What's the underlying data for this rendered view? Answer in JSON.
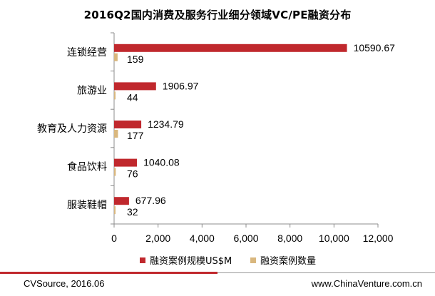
{
  "chart_data": {
    "type": "bar",
    "orientation": "horizontal",
    "title": "2016Q2国内消费及服务行业细分领域VC/PE融资分布",
    "categories": [
      "连锁经营",
      "旅游业",
      "教育及人力资源",
      "食品饮料",
      "服装鞋帽"
    ],
    "series": [
      {
        "name": "融资案例规模US$M",
        "values": [
          10590.67,
          1906.97,
          1234.79,
          1040.08,
          677.96
        ],
        "labels": [
          "10590.67",
          "1906.97",
          "1234.79",
          "1040.08",
          "677.96"
        ],
        "color": "#c0282d"
      },
      {
        "name": "融资案例数量",
        "values": [
          159,
          44,
          177,
          76,
          32
        ],
        "labels": [
          "159",
          "44",
          "177",
          "76",
          "32"
        ],
        "color": "#d9b77e"
      }
    ],
    "xlim": [
      0,
      12000
    ],
    "xticks": [
      0,
      2000,
      4000,
      6000,
      8000,
      10000,
      12000
    ],
    "xtick_labels": [
      "0",
      "2,000",
      "4,000",
      "6,000",
      "8,000",
      "10,000",
      "12,000"
    ],
    "grid": false,
    "legend_position": "bottom"
  },
  "footer": {
    "source": "CVSource, 2016.06",
    "website": "www.ChinaVenture.com.cn"
  }
}
